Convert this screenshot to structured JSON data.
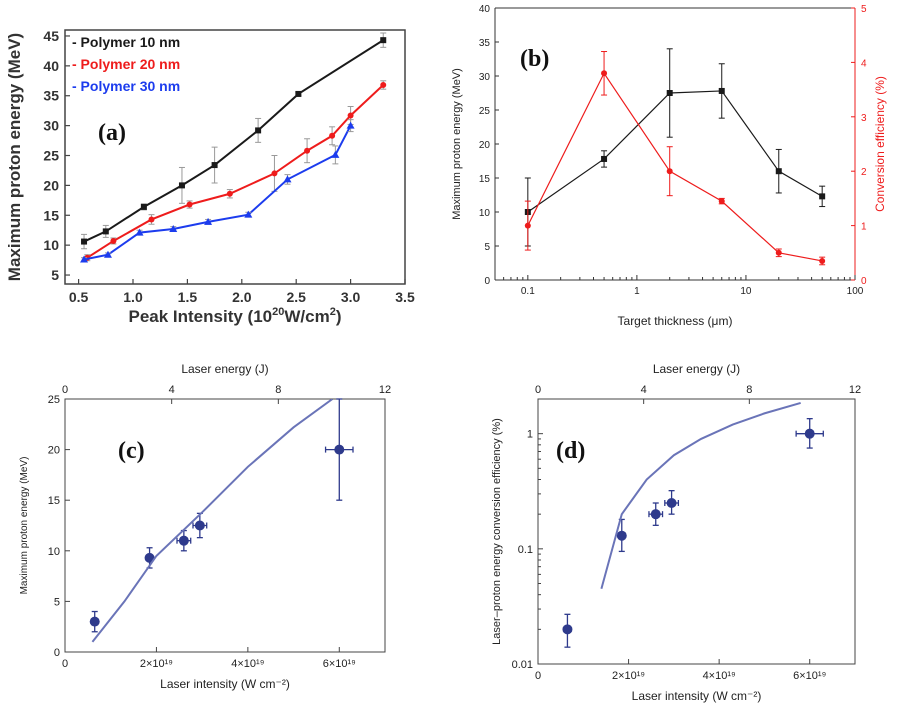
{
  "chart_data": [
    {
      "panel_label": "(a)",
      "type": "line",
      "xlabel": "Peak Intensity (10",
      "xlabel_sup": "20",
      "xlabel_tail": "W/cm",
      "xlabel_sup2": "2",
      "xlabel_end": ")",
      "ylabel": "Maximum proton energy (MeV)",
      "xlim": [
        0.375,
        3.5
      ],
      "ylim": [
        3.5,
        46
      ],
      "x_ticks": [
        0.5,
        1.0,
        1.5,
        2.0,
        2.5,
        3.0,
        3.5
      ],
      "x_tick_labels": [
        "0.5",
        "1.0",
        "1.5",
        "2.0",
        "2.5",
        "3.0",
        "3.5"
      ],
      "y_ticks": [
        5,
        10,
        15,
        20,
        25,
        30,
        35,
        40,
        45
      ],
      "y_tick_labels": [
        "5",
        "10",
        "15",
        "20",
        "25",
        "30",
        "35",
        "40",
        "45"
      ],
      "legend_position": "top-left",
      "series": [
        {
          "name": "Polymer 10 nm",
          "legend_prefix": "- ",
          "color": "#1a1a1a",
          "marker": "square",
          "x": [
            0.55,
            0.75,
            1.1,
            1.45,
            1.75,
            2.15,
            2.52,
            3.3
          ],
          "y": [
            10.6,
            12.3,
            16.4,
            20.0,
            23.4,
            29.2,
            35.3,
            44.3
          ],
          "err": [
            1.2,
            1.0,
            0.5,
            3.0,
            3.0,
            2.0,
            0.3,
            1.2
          ]
        },
        {
          "name": "Polymer 20 nm",
          "legend_prefix": "- ",
          "color": "#ee1c1c",
          "marker": "circle",
          "x": [
            0.58,
            0.82,
            1.17,
            1.52,
            1.89,
            2.3,
            2.6,
            2.83,
            3.0,
            3.3
          ],
          "y": [
            7.9,
            10.7,
            14.3,
            16.8,
            18.6,
            22.0,
            25.8,
            28.3,
            31.7,
            36.8
          ],
          "err": [
            0.5,
            0.5,
            0.8,
            0.6,
            0.7,
            3.0,
            2.0,
            1.5,
            1.5,
            0.7
          ]
        },
        {
          "name": "Polymer 30 nm",
          "legend_prefix": "- ",
          "color": "#1c3cee",
          "marker": "triangle",
          "x": [
            0.55,
            0.77,
            1.06,
            1.37,
            1.69,
            2.06,
            2.42,
            2.86,
            3.0
          ],
          "y": [
            7.6,
            8.4,
            12.1,
            12.7,
            13.9,
            15.1,
            21.0,
            25.1,
            30.0
          ],
          "err": [
            0.3,
            0.3,
            0.4,
            0.4,
            0.4,
            0.4,
            0.8,
            1.5,
            1.0
          ]
        }
      ]
    },
    {
      "panel_label": "(b)",
      "type": "line",
      "xlabel": "Target thickness (μm)",
      "ylabel": "Maximum proton energy (MeV)",
      "ylabel_right": "Conversion efficiency (%)",
      "x_scale": "log",
      "xlim": [
        0.05,
        100
      ],
      "ylim": [
        0,
        40
      ],
      "ylim_right": [
        0,
        5
      ],
      "x_ticks": [
        0.1,
        1,
        10,
        100
      ],
      "x_tick_labels": [
        "0.1",
        "1",
        "10",
        "100"
      ],
      "y_ticks": [
        0,
        5,
        10,
        15,
        20,
        25,
        30,
        35,
        40
      ],
      "y_tick_labels": [
        "0",
        "5",
        "10",
        "15",
        "20",
        "25",
        "30",
        "35",
        "40"
      ],
      "y_ticks_right": [
        0,
        1,
        2,
        3,
        4,
        5
      ],
      "y_tick_labels_right": [
        "0",
        "1",
        "2",
        "3",
        "4",
        "5"
      ],
      "series": [
        {
          "axis": "left",
          "color": "#1a1a1a",
          "marker": "square",
          "x": [
            0.1,
            0.5,
            2,
            6,
            20,
            50
          ],
          "y": [
            10.0,
            17.8,
            27.5,
            27.8,
            16.0,
            12.3
          ],
          "err": [
            5.0,
            1.2,
            6.5,
            4.0,
            3.2,
            1.5
          ]
        },
        {
          "axis": "right",
          "color": "#ee1c1c",
          "marker": "circle",
          "x": [
            0.1,
            0.5,
            2,
            6,
            20,
            50
          ],
          "y": [
            1.0,
            3.8,
            2.0,
            1.45,
            0.5,
            0.35
          ],
          "err": [
            0.45,
            0.4,
            0.45,
            0.05,
            0.07,
            0.07
          ]
        }
      ]
    },
    {
      "panel_label": "(c)",
      "type": "scatter",
      "xlabel": "Laser intensity (W cm⁻²)",
      "ylabel": "Maximum proton energy (MeV)",
      "x2label": "Laser energy (J)",
      "xlim": [
        0,
        7e+19
      ],
      "ylim": [
        0,
        25
      ],
      "x_ticks": [
        0,
        2e+19,
        4e+19,
        6e+19
      ],
      "x_tick_labels": [
        "0",
        "2×10¹⁹",
        "4×10¹⁹",
        "6×10¹⁹"
      ],
      "y_ticks": [
        0,
        5,
        10,
        15,
        20,
        25
      ],
      "y_tick_labels": [
        "0",
        "5",
        "10",
        "15",
        "20",
        "25"
      ],
      "x2lim": [
        0,
        12
      ],
      "x2_ticks": [
        0,
        4,
        8,
        12
      ],
      "x2_tick_labels": [
        "0",
        "4",
        "8",
        "12"
      ],
      "series": [
        {
          "type": "scatter",
          "color": "#2e3a8c",
          "x": [
            6.5e+18,
            1.85e+19,
            2.6e+19,
            2.95e+19,
            6e+19
          ],
          "y": [
            3.0,
            9.3,
            11.0,
            12.5,
            20.0
          ],
          "yerr": [
            1.0,
            1.0,
            1.0,
            1.2,
            5.0
          ],
          "xerr": [
            0,
            0,
            1.5e+18,
            1.5e+18,
            3e+18
          ]
        },
        {
          "type": "line",
          "color": "#6a74b8",
          "x": [
            6e+18,
            1.3e+19,
            2e+19,
            3e+19,
            4e+19,
            5e+19,
            5.85e+19
          ],
          "y": [
            1.0,
            5.0,
            9.5,
            13.8,
            18.3,
            22.2,
            25.0
          ]
        }
      ]
    },
    {
      "panel_label": "(d)",
      "type": "scatter",
      "xlabel": "Laser intensity (W cm⁻²)",
      "ylabel": "Laser–proton energy conversion efficiency (%)",
      "x2label": "Laser energy (J)",
      "y_scale": "log",
      "xlim": [
        0,
        7e+19
      ],
      "ylim": [
        0.01,
        2
      ],
      "x_ticks": [
        0,
        2e+19,
        4e+19,
        6e+19
      ],
      "x_tick_labels": [
        "0",
        "2×10¹⁹",
        "4×10¹⁹",
        "6×10¹⁹"
      ],
      "y_ticks": [
        0.01,
        0.1,
        1
      ],
      "y_tick_labels": [
        "0.01",
        "0.1",
        "1"
      ],
      "x2lim": [
        0,
        12
      ],
      "x2_ticks": [
        0,
        4,
        8,
        12
      ],
      "x2_tick_labels": [
        "0",
        "4",
        "8",
        "12"
      ],
      "series": [
        {
          "type": "scatter",
          "color": "#2e3a8c",
          "x": [
            6.5e+18,
            1.85e+19,
            2.6e+19,
            2.95e+19,
            6e+19
          ],
          "y": [
            0.02,
            0.13,
            0.2,
            0.25,
            1.0
          ],
          "yerr_lo": [
            0.006,
            0.035,
            0.04,
            0.05,
            0.25
          ],
          "yerr_hi": [
            0.007,
            0.05,
            0.05,
            0.07,
            0.35
          ],
          "xerr": [
            0,
            0,
            1.5e+18,
            1.5e+18,
            3e+18
          ]
        },
        {
          "type": "line",
          "color": "#6a74b8",
          "x": [
            1.4e+19,
            1.85e+19,
            2.4e+19,
            3e+19,
            3.6e+19,
            4.3e+19,
            5e+19,
            5.8e+19
          ],
          "y": [
            0.045,
            0.2,
            0.4,
            0.65,
            0.9,
            1.2,
            1.5,
            1.85
          ]
        }
      ]
    }
  ]
}
